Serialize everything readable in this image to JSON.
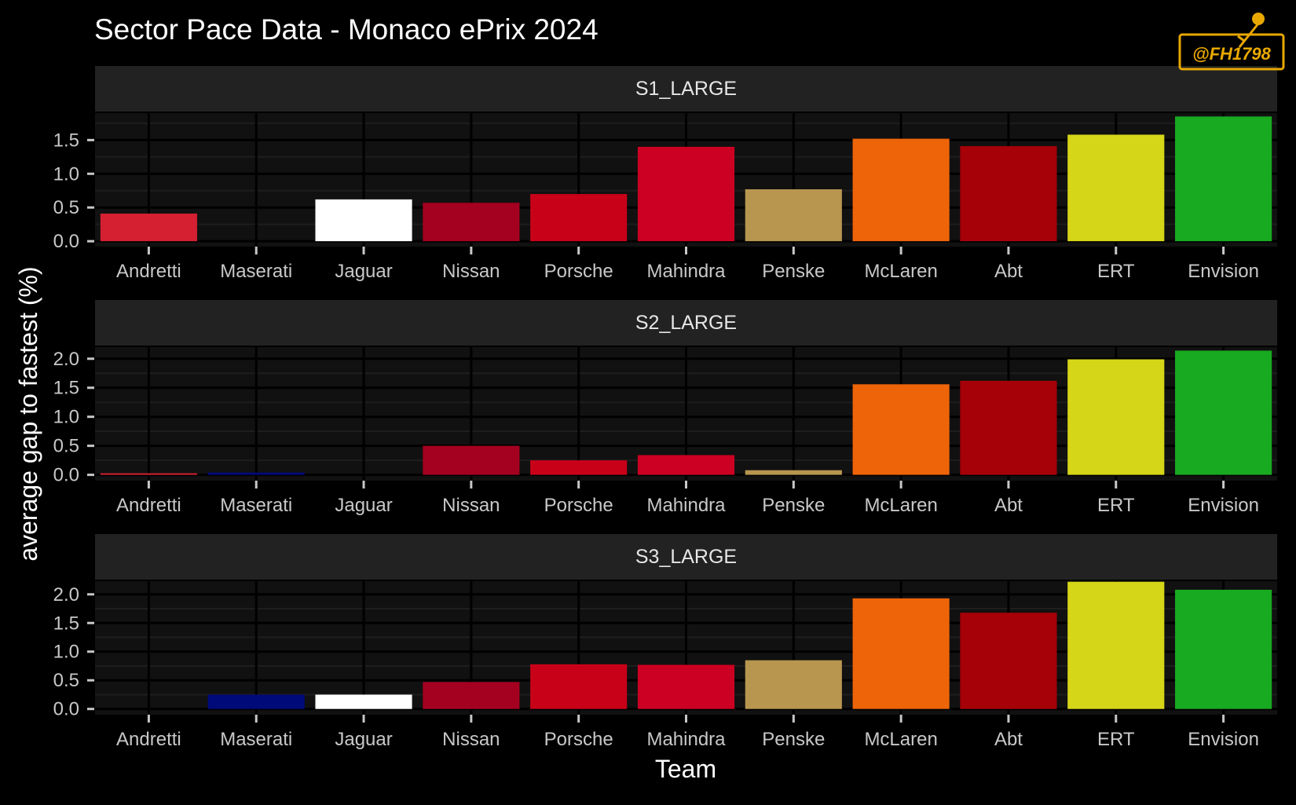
{
  "chart_data": {
    "type": "bar",
    "title": "Sector Pace Data - Monaco ePrix 2024",
    "xlabel": "Team",
    "ylabel": "average gap to fastest (%)",
    "categories": [
      "Andretti",
      "Maserati",
      "Jaguar",
      "Nissan",
      "Porsche",
      "Mahindra",
      "Penske",
      "McLaren",
      "Abt",
      "ERT",
      "Envision"
    ],
    "category_colors": [
      "#d42030",
      "#000a78",
      "#ffffff",
      "#a40020",
      "#c80018",
      "#cc0022",
      "#b89650",
      "#ee6408",
      "#a60008",
      "#d6d618",
      "#18aa20"
    ],
    "panels": [
      {
        "label": "S1_LARGE",
        "ylim": [
          -0.08,
          1.9
        ],
        "yticks": [
          0.0,
          0.5,
          1.0,
          1.5
        ],
        "ytick_labels": [
          "0.0",
          "0.5",
          "1.0",
          "1.5"
        ],
        "values": [
          0.41,
          0.0,
          0.62,
          0.57,
          0.7,
          1.4,
          0.77,
          1.52,
          1.41,
          1.58,
          1.85
        ]
      },
      {
        "label": "S2_LARGE",
        "ylim": [
          -0.1,
          2.2
        ],
        "yticks": [
          0.0,
          0.5,
          1.0,
          1.5,
          2.0
        ],
        "ytick_labels": [
          "0.0",
          "0.5",
          "1.0",
          "1.5",
          "2.0"
        ],
        "values": [
          0.02,
          0.04,
          0.0,
          0.5,
          0.25,
          0.34,
          0.08,
          1.56,
          1.62,
          1.99,
          2.14
        ]
      },
      {
        "label": "S3_LARGE",
        "ylim": [
          -0.1,
          2.23
        ],
        "yticks": [
          0.0,
          0.5,
          1.0,
          1.5,
          2.0
        ],
        "ytick_labels": [
          "0.0",
          "0.5",
          "1.0",
          "1.5",
          "2.0"
        ],
        "values": [
          0.0,
          0.25,
          0.25,
          0.47,
          0.78,
          0.77,
          0.85,
          1.93,
          1.68,
          2.22,
          2.08
        ]
      }
    ],
    "grid": true,
    "legend": "none"
  },
  "watermark": {
    "text": "@FH1798",
    "color": "#e8a800"
  }
}
